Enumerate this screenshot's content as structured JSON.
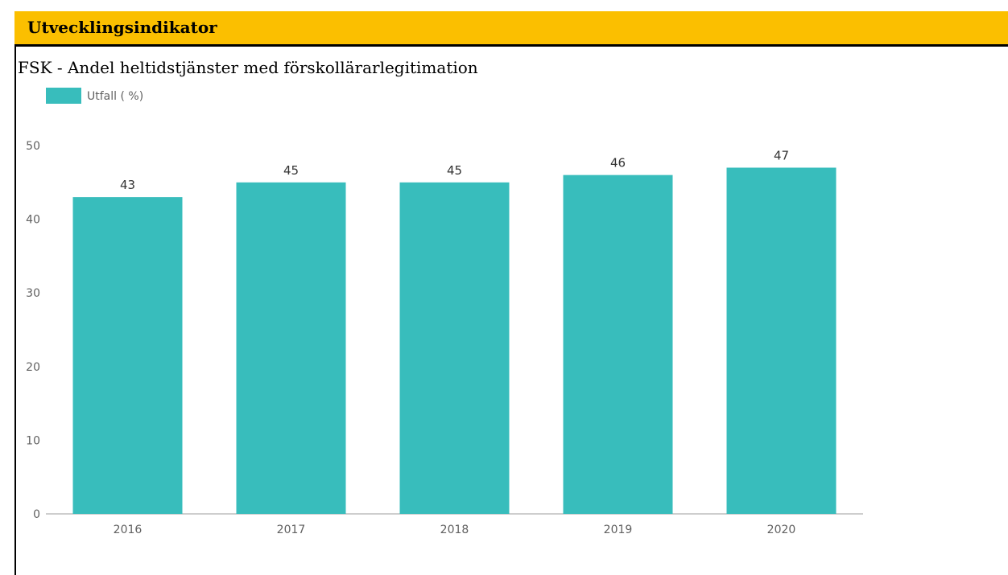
{
  "header": {
    "title": "Utvecklingsindikator"
  },
  "panel": {
    "title": "FSK - Andel heltidstjänster med förskollärarlegitimation"
  },
  "colors": {
    "header_background": "#fbbf00",
    "bar": "#38bdbc",
    "axis_text": "#616161",
    "data_label": "#333333",
    "axis_line": "#bdbdbd"
  },
  "chart_data": {
    "type": "bar",
    "categories": [
      "2016",
      "2017",
      "2018",
      "2019",
      "2020"
    ],
    "series": [
      {
        "name": "Utfall ( %)",
        "values": [
          43,
          45,
          45,
          46,
          47
        ]
      }
    ],
    "data_labels": [
      "43",
      "45",
      "45",
      "46",
      "47"
    ],
    "y_ticks": [
      0,
      10,
      20,
      30,
      40,
      50
    ],
    "ylim": [
      0,
      50
    ],
    "grid": false,
    "legend": "top-left",
    "title": "",
    "xlabel": "",
    "ylabel": ""
  }
}
